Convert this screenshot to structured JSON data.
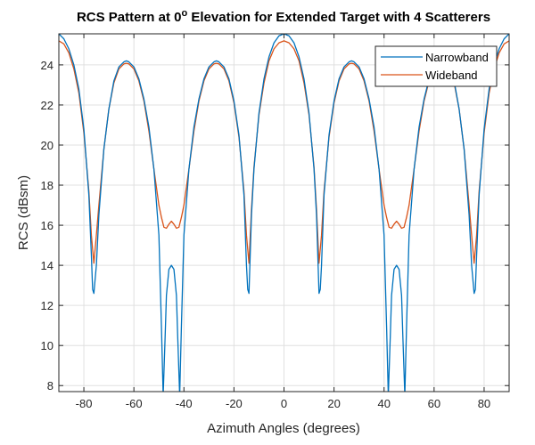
{
  "chart_data": {
    "type": "line",
    "title": "RCS Pattern at 0° Elevation for Extended Target with 4 Scatterers",
    "title_main": "RCS Pattern at 0",
    "title_sup": "o",
    "title_rest": " Elevation for Extended Target with 4 Scatterers",
    "xlabel": "Azimuth Angles (degrees)",
    "ylabel": "RCS (dBsm)",
    "xlim": [
      -90,
      90
    ],
    "ylim": [
      7.7,
      25.55
    ],
    "xticks": [
      -80,
      -60,
      -40,
      -20,
      0,
      20,
      40,
      60,
      80
    ],
    "yticks": [
      8,
      10,
      12,
      14,
      16,
      18,
      20,
      22,
      24
    ],
    "grid": true,
    "legend_position": "top-right",
    "series": [
      {
        "name": "Narrowband",
        "color": "#0072BD",
        "x": [
          -90,
          -88,
          -86,
          -84,
          -82,
          -80,
          -78,
          -77,
          -76.5,
          -76,
          -75,
          -74,
          -72,
          -70,
          -68,
          -66,
          -64,
          -63,
          -62,
          -60,
          -58,
          -56,
          -54,
          -52,
          -50,
          -49,
          -48.3,
          -47.5,
          -47,
          -46,
          -45,
          -44,
          -43,
          -42.5,
          -41.7,
          -41,
          -40,
          -38,
          -36,
          -34,
          -32,
          -30,
          -28,
          -27,
          -26,
          -24,
          -22,
          -20,
          -18,
          -16,
          -15,
          -14.5,
          -14,
          -13,
          -12,
          -10,
          -8,
          -6,
          -4,
          -2,
          0,
          2,
          4,
          6,
          8,
          10,
          12,
          13,
          14,
          14.5,
          15,
          16,
          18,
          20,
          22,
          24,
          26,
          27,
          28,
          30,
          32,
          34,
          36,
          38,
          40,
          41,
          41.7,
          42.5,
          43,
          44,
          45,
          46,
          47,
          47.5,
          48.3,
          49,
          50,
          52,
          54,
          56,
          58,
          60,
          62,
          63,
          64,
          66,
          68,
          70,
          72,
          74,
          75,
          76,
          76.5,
          77,
          78,
          80,
          82,
          84,
          86,
          88,
          90
        ],
        "y": [
          25.55,
          25.3,
          24.8,
          24,
          22.8,
          20.8,
          17.5,
          14.5,
          12.8,
          12.6,
          14,
          16.5,
          19.8,
          21.8,
          23.2,
          23.9,
          24.15,
          24.2,
          24.15,
          23.9,
          23.3,
          22.3,
          20.9,
          18.8,
          15.5,
          11,
          7.5,
          10.5,
          12.5,
          13.8,
          14,
          13.8,
          12.5,
          10.5,
          7.5,
          11,
          15.5,
          18.8,
          20.9,
          22.3,
          23.3,
          23.9,
          24.15,
          24.2,
          24.15,
          23.9,
          23.3,
          22.2,
          20.5,
          17.5,
          14,
          12.8,
          12.6,
          16.5,
          18.8,
          21.6,
          23.3,
          24.4,
          25.1,
          25.45,
          25.55,
          25.45,
          25.1,
          24.4,
          23.3,
          21.6,
          18.8,
          16.5,
          12.6,
          12.8,
          14,
          17.5,
          20.5,
          22.2,
          23.3,
          23.9,
          24.15,
          24.2,
          24.15,
          23.9,
          23.3,
          22.3,
          20.9,
          18.8,
          15.5,
          11,
          7.5,
          10.5,
          12.5,
          13.8,
          14,
          13.8,
          12.5,
          10.5,
          7.5,
          11,
          15.5,
          18.8,
          20.9,
          22.3,
          23.3,
          23.9,
          24.15,
          24.2,
          24.15,
          23.9,
          23.2,
          21.8,
          19.8,
          16.5,
          14,
          12.6,
          12.8,
          14.5,
          17.5,
          20.8,
          22.8,
          24,
          24.8,
          25.3,
          25.55
        ]
      },
      {
        "name": "Wideband",
        "color": "#D95319",
        "x": [
          -90,
          -88,
          -86,
          -84,
          -82,
          -80,
          -78,
          -77,
          -76,
          -75,
          -74,
          -72,
          -70,
          -68,
          -66,
          -64,
          -63,
          -62,
          -60,
          -58,
          -56,
          -54,
          -52,
          -50,
          -49,
          -48,
          -47,
          -46,
          -45,
          -44,
          -43,
          -42,
          -41,
          -40,
          -38,
          -36,
          -34,
          -32,
          -30,
          -28,
          -27,
          -26,
          -24,
          -22,
          -20,
          -18,
          -16,
          -15,
          -14,
          -13,
          -12,
          -10,
          -8,
          -6,
          -4,
          -2,
          0,
          2,
          4,
          6,
          8,
          10,
          12,
          13,
          14,
          15,
          16,
          18,
          20,
          22,
          24,
          26,
          27,
          28,
          30,
          32,
          34,
          36,
          38,
          40,
          41,
          42,
          43,
          44,
          45,
          46,
          47,
          48,
          49,
          50,
          52,
          54,
          56,
          58,
          60,
          62,
          63,
          64,
          66,
          68,
          70,
          72,
          74,
          75,
          76,
          77,
          78,
          80,
          82,
          84,
          86,
          88,
          90
        ],
        "y": [
          25.2,
          25.05,
          24.6,
          23.8,
          22.6,
          20.6,
          17.7,
          15.5,
          14.1,
          15.5,
          17,
          19.8,
          21.8,
          23.1,
          23.8,
          24.05,
          24.08,
          24.05,
          23.8,
          23.2,
          22.2,
          20.7,
          18.8,
          17,
          16.4,
          15.9,
          15.85,
          16.05,
          16.2,
          16.05,
          15.85,
          15.9,
          16.4,
          17,
          18.8,
          20.7,
          22.2,
          23.2,
          23.8,
          24.05,
          24.08,
          24.05,
          23.8,
          23.2,
          22.1,
          20.4,
          17.7,
          15.5,
          14.1,
          16.8,
          18.9,
          21.5,
          23.1,
          24.2,
          24.8,
          25.1,
          25.2,
          25.1,
          24.8,
          24.2,
          23.1,
          21.5,
          18.9,
          16.8,
          14.1,
          15.5,
          17.7,
          20.4,
          22.1,
          23.2,
          23.8,
          24.05,
          24.08,
          24.05,
          23.8,
          23.2,
          22.2,
          20.7,
          18.8,
          17,
          16.4,
          15.9,
          15.85,
          16.05,
          16.2,
          16.05,
          15.85,
          15.9,
          16.4,
          17,
          18.8,
          20.7,
          22.2,
          23.2,
          23.8,
          24.05,
          24.08,
          24.05,
          23.8,
          23.1,
          21.8,
          19.8,
          17,
          15.5,
          14.1,
          15.5,
          17.7,
          20.6,
          22.6,
          23.8,
          24.6,
          25.05,
          25.2
        ]
      }
    ]
  }
}
